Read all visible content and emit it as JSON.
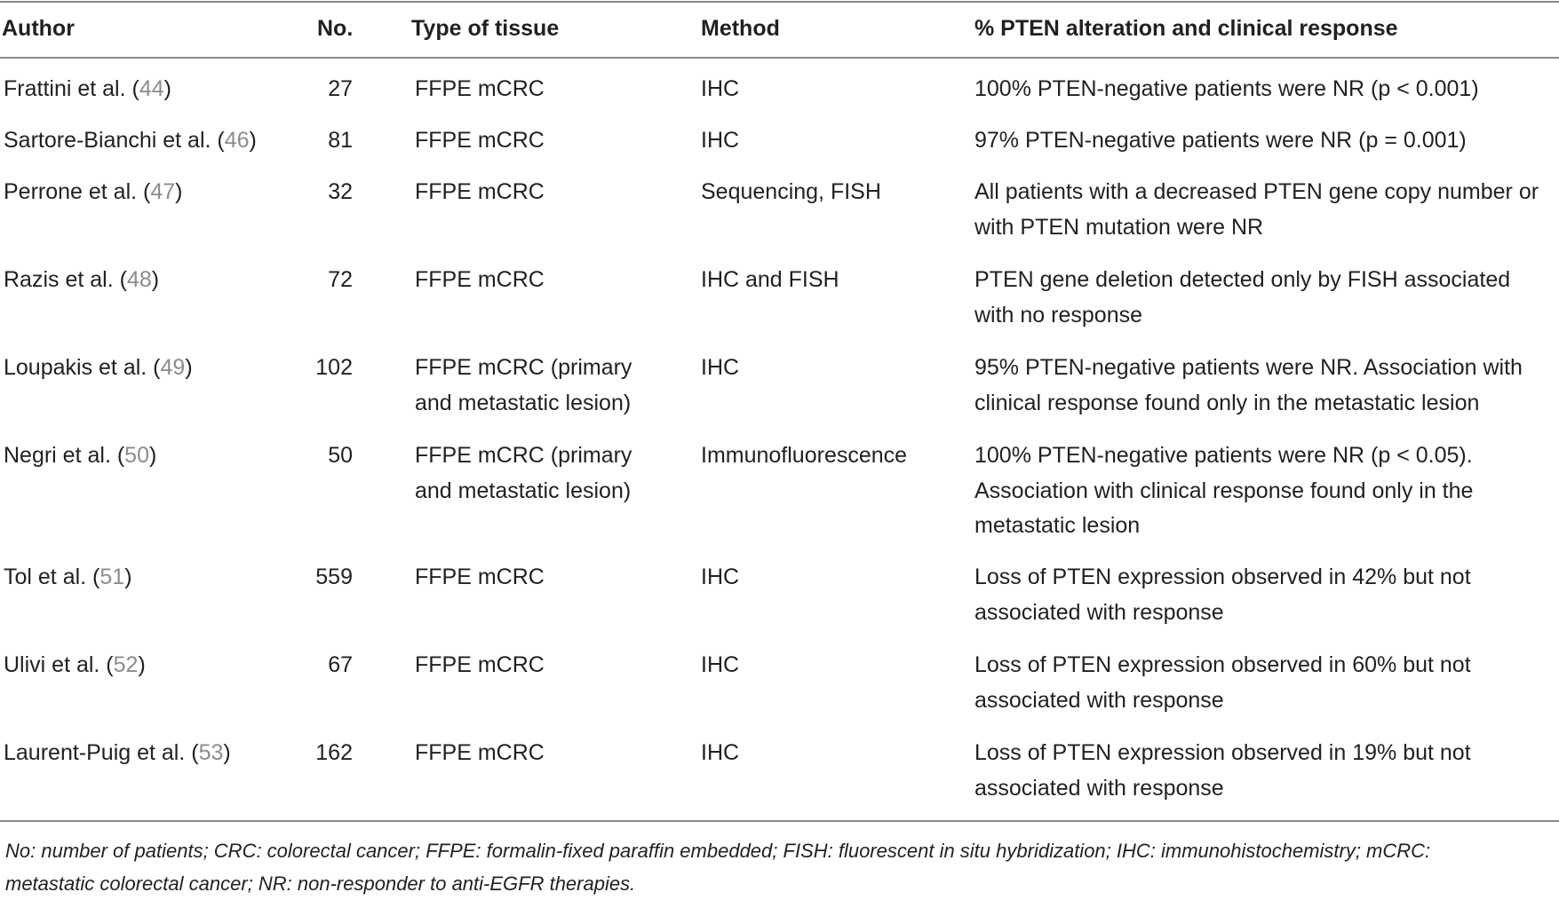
{
  "table": {
    "headers": {
      "author": "Author",
      "no": "No.",
      "tissue": "Type of tissue",
      "method": "Method",
      "response": "% PTEN alteration and clinical response"
    },
    "rows": [
      {
        "author": "Frattini et al. (",
        "ref": "44",
        "author_close": ")",
        "no": "27",
        "tissue": [
          "FFPE mCRC"
        ],
        "method": "IHC",
        "response": [
          "100% PTEN-negative patients were NR (p < 0.001)"
        ]
      },
      {
        "author": "Sartore-Bianchi et al. (",
        "ref": "46",
        "author_close": ")",
        "no": "81",
        "tissue": [
          "FFPE mCRC"
        ],
        "method": "IHC",
        "response": [
          "97% PTEN-negative patients were NR (p = 0.001)"
        ]
      },
      {
        "author": "Perrone et al. (",
        "ref": "47",
        "author_close": ")",
        "no": "32",
        "tissue": [
          "FFPE mCRC"
        ],
        "method": "Sequencing, FISH",
        "response": [
          "All patients with a decreased PTEN gene copy number or",
          "with PTEN mutation were NR"
        ]
      },
      {
        "author": "Razis et al. (",
        "ref": "48",
        "author_close": ")",
        "no": "72",
        "tissue": [
          "FFPE mCRC"
        ],
        "method": "IHC and FISH",
        "response": [
          "PTEN gene deletion detected only by FISH associated",
          "with no response"
        ]
      },
      {
        "author": "Loupakis et al. (",
        "ref": "49",
        "author_close": ")",
        "no": "102",
        "tissue": [
          "FFPE mCRC (primary",
          "and metastatic lesion)"
        ],
        "method": "IHC",
        "response": [
          "95% PTEN-negative patients were NR. Association with",
          "clinical response found only in the metastatic lesion"
        ]
      },
      {
        "author": "Negri et al. (",
        "ref": "50",
        "author_close": ")",
        "no": "50",
        "tissue": [
          "FFPE mCRC (primary",
          "and metastatic lesion)"
        ],
        "method": "Immunofluorescence",
        "response": [
          "100% PTEN-negative patients were NR (p < 0.05).",
          "Association with clinical response found only in the",
          "metastatic lesion"
        ]
      },
      {
        "author": "Tol et al. (",
        "ref": "51",
        "author_close": ")",
        "no": "559",
        "tissue": [
          "FFPE mCRC"
        ],
        "method": "IHC",
        "response": [
          "Loss of PTEN expression observed in 42% but not",
          "associated with response"
        ]
      },
      {
        "author": "Ulivi et al. (",
        "ref": "52",
        "author_close": ")",
        "no": "67",
        "tissue": [
          "FFPE mCRC"
        ],
        "method": "IHC",
        "response": [
          "Loss of PTEN expression observed in 60% but not",
          "associated with response"
        ]
      },
      {
        "author": "Laurent-Puig et al. (",
        "ref": "53",
        "author_close": ")",
        "no": "162",
        "tissue": [
          "FFPE mCRC"
        ],
        "method": "IHC",
        "response": [
          "Loss of PTEN expression observed in 19% but not",
          "associated with response"
        ]
      }
    ]
  },
  "footnote": [
    "No: number of patients; CRC: colorectal cancer; FFPE: formalin-fixed paraffin embedded; FISH: fluorescent in situ hybridization; IHC: immunohistochemistry; mCRC:",
    "metastatic colorectal cancer; NR: non-responder to anti-EGFR therapies."
  ],
  "colors": {
    "text": "#231f20",
    "reference_link": "#8c8c8c",
    "rule": "#8a8a8a"
  }
}
